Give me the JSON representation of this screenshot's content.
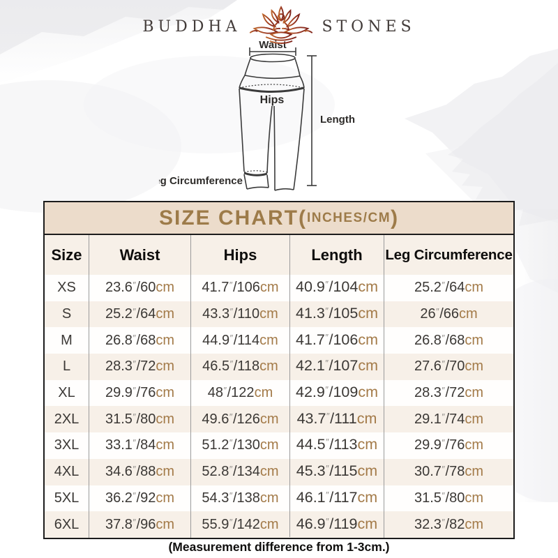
{
  "brand": {
    "left": "BUDDHA",
    "right": "STONES",
    "icon": "lotus-meditation-icon"
  },
  "diagram": {
    "waist_label": "Waist",
    "hips_label": "Hips",
    "length_label": "Length",
    "leg_label": "Leg Circumference"
  },
  "size_chart": {
    "title_main": "SIZE CHART(",
    "title_small": "INCHES/CM",
    "title_end": ")",
    "columns": [
      "Size",
      "Waist",
      "Hips",
      "Length",
      "Leg Circumference"
    ],
    "unit_inch": "″",
    "unit_cm": "cm",
    "separator": "/",
    "rows": [
      {
        "size": "XS",
        "waist": [
          "23.6",
          "60"
        ],
        "hips": [
          "41.7",
          "106"
        ],
        "length": [
          "40.9",
          "104"
        ],
        "leg": [
          "25.2",
          "64"
        ]
      },
      {
        "size": "S",
        "waist": [
          "25.2",
          "64"
        ],
        "hips": [
          "43.3",
          "110"
        ],
        "length": [
          "41.3",
          "105"
        ],
        "leg": [
          "26",
          "66"
        ]
      },
      {
        "size": "M",
        "waist": [
          "26.8",
          "68"
        ],
        "hips": [
          "44.9",
          "114"
        ],
        "length": [
          "41.7",
          "106"
        ],
        "leg": [
          "26.8",
          "68"
        ]
      },
      {
        "size": "L",
        "waist": [
          "28.3",
          "72"
        ],
        "hips": [
          "46.5",
          "118"
        ],
        "length": [
          "42.1",
          "107"
        ],
        "leg": [
          "27.6",
          "70"
        ]
      },
      {
        "size": "XL",
        "waist": [
          "29.9",
          "76"
        ],
        "hips": [
          "48",
          "122"
        ],
        "length": [
          "42.9",
          "109"
        ],
        "leg": [
          "28.3",
          "72"
        ]
      },
      {
        "size": "2XL",
        "waist": [
          "31.5",
          "80"
        ],
        "hips": [
          "49.6",
          "126"
        ],
        "length": [
          "43.7",
          "111"
        ],
        "leg": [
          "29.1",
          "74"
        ]
      },
      {
        "size": "3XL",
        "waist": [
          "33.1",
          "84"
        ],
        "hips": [
          "51.2",
          "130"
        ],
        "length": [
          "44.5",
          "113"
        ],
        "leg": [
          "29.9",
          "76"
        ]
      },
      {
        "size": "4XL",
        "waist": [
          "34.6",
          "88"
        ],
        "hips": [
          "52.8",
          "134"
        ],
        "length": [
          "45.3",
          "115"
        ],
        "leg": [
          "30.7",
          "78"
        ]
      },
      {
        "size": "5XL",
        "waist": [
          "36.2",
          "92"
        ],
        "hips": [
          "54.3",
          "138"
        ],
        "length": [
          "46.1",
          "117"
        ],
        "leg": [
          "31.5",
          "80"
        ]
      },
      {
        "size": "6XL",
        "waist": [
          "37.8",
          "96"
        ],
        "hips": [
          "55.9",
          "142"
        ],
        "length": [
          "46.9",
          "119"
        ],
        "leg": [
          "32.3",
          "82"
        ]
      }
    ]
  },
  "footer_note": "(Measurement difference from 1-3cm.)",
  "colors": {
    "accent_tan": "#9d7b49",
    "cm_tan": "#a37a48",
    "band_bg": "#ecdccb",
    "alt_row_bg": "#f7f0e8",
    "border_dark": "#1c1c1c",
    "divider_gray": "#9b9b9b",
    "number_dark": "#3b3835",
    "logo_text": "#433c3a",
    "lotus_gradient_from": "#bc652c",
    "lotus_gradient_to": "#7e241c"
  }
}
